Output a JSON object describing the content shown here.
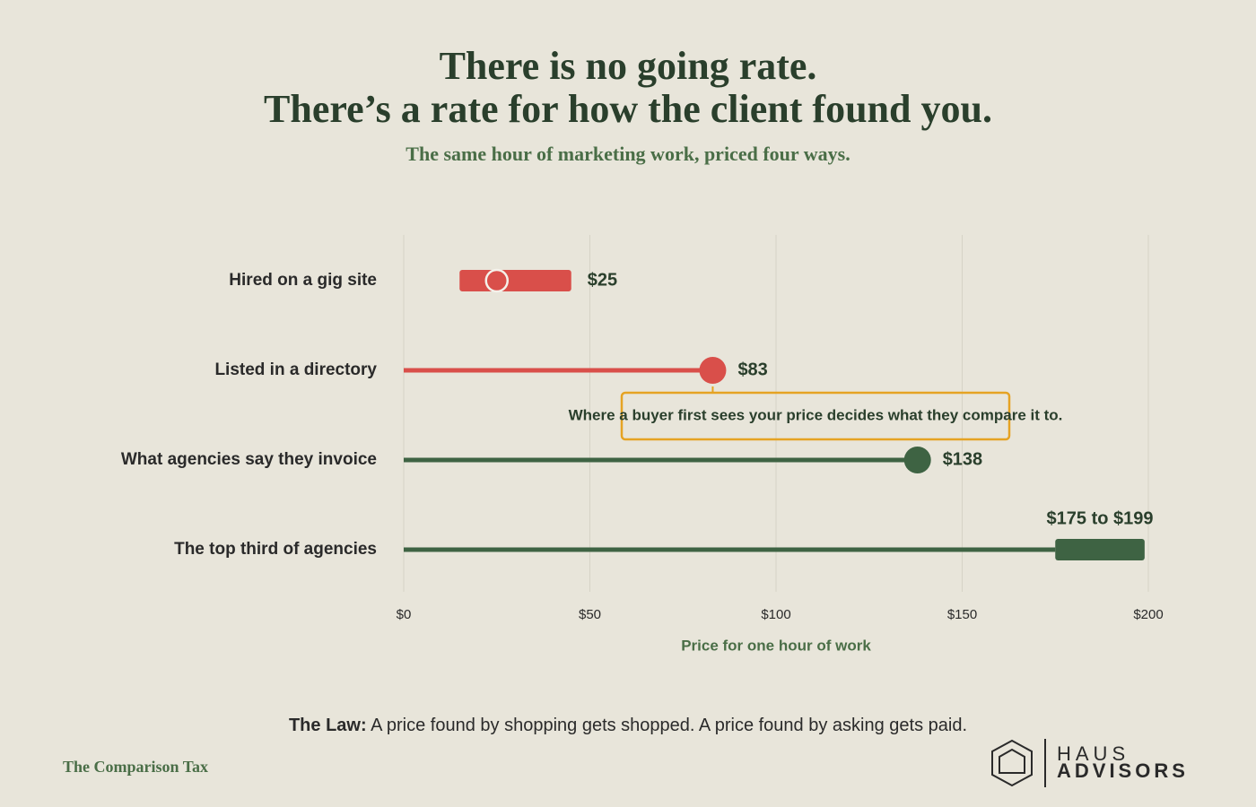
{
  "chart_data": {
    "type": "dot-range",
    "title": [
      "There is no going rate.",
      "There’s a rate for how the client found you."
    ],
    "subtitle": "The same hour of marketing work, priced four ways.",
    "categories": [
      "Hired on a gig site",
      "Listed in a directory",
      "What agencies say they invoice",
      "The top third of agencies"
    ],
    "values": [
      25,
      83,
      138,
      null
    ],
    "value_labels": [
      "$25",
      "$83",
      "$138",
      null
    ],
    "ranges": [
      [
        15,
        45
      ],
      null,
      null,
      [
        175,
        199
      ]
    ],
    "range_labels": [
      null,
      null,
      null,
      "$175 to $199"
    ],
    "stems": [
      false,
      true,
      true,
      true
    ],
    "colors": [
      "#d94f4a",
      "#d94f4a",
      "#3e6343",
      "#3e6343"
    ],
    "xlim": [
      0,
      200
    ],
    "xticks": [
      {
        "value": 0,
        "label": "$0"
      },
      {
        "value": 50,
        "label": "$50"
      },
      {
        "value": 100,
        "label": "$100"
      },
      {
        "value": 150,
        "label": "$150"
      },
      {
        "value": 200,
        "label": "$200"
      }
    ],
    "grid": true,
    "x_label": "Price for one hour of work",
    "annotation": "Where a buyer first sees your price decides what they compare it to."
  },
  "footer": {
    "law_label": "The Law:",
    "law_text": "A price found by shopping gets shopped. A price found by asking gets paid.",
    "series_name": "The Comparison Tax",
    "brand": [
      "HAUS",
      "ADVISORS"
    ]
  }
}
